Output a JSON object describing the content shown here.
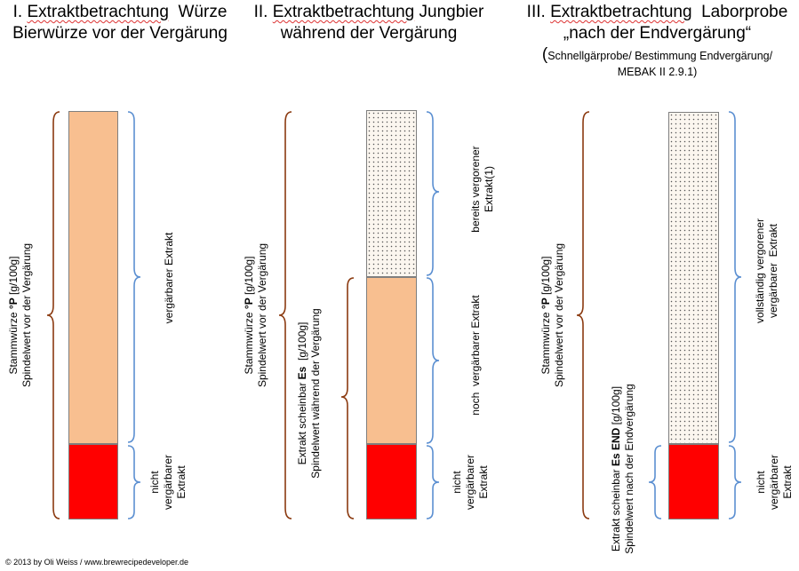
{
  "sections": [
    {
      "title_prefix": "I. ",
      "title_underlined": "Extraktbetrachtung",
      "title_rest": "  Würze",
      "subtitle": "Bierwürze vor der Vergärung",
      "left_label": {
        "line1_pre": "Stammwürze ",
        "line1_bold": "°P",
        "line1_post": " [g/100g]",
        "line2": "Spindelwert vor der Vergärung"
      },
      "upper_label": {
        "line1": "vergärbarer  Extrakt"
      },
      "lower_label": {
        "line1": "nicht",
        "line2": "vergärbarer",
        "line3": "Extrakt"
      }
    },
    {
      "title_prefix": "II. ",
      "title_underlined": "Extraktbetrachtung",
      "title_rest": " Jungbier",
      "subtitle": "während der Vergärung",
      "left_label": {
        "line1_pre": "Stammwürze ",
        "line1_bold": "°P",
        "line1_post": " [g/100g]",
        "line2": "Spindelwert vor der Vergärung"
      },
      "middle_label": {
        "line1_pre": "Extrakt scheinbar ",
        "line1_bold": "Es",
        "line1_post": "  [g/100g]",
        "line2": "Spindelwert während der Vergärung"
      },
      "upper_label": {
        "line1": "bereits vergorener",
        "line2": "Extrakt(1)"
      },
      "center_label": {
        "line1": "noch  vergärbarer Extrakt"
      },
      "lower_label": {
        "line1": "nicht",
        "line2": "vergärbarer",
        "line3": "Extrakt"
      }
    },
    {
      "title_prefix": "III. ",
      "title_underlined": "Extraktbetrachtung",
      "title_rest": "  Laborprobe",
      "subtitle": "„nach der Endvergärung“",
      "note_paren": "(",
      "note_line1": "Schnellgärprobe/ Bestimmung Endvergärung/",
      "note_line2": "MEBAK II 2.9.1)",
      "left_label": {
        "line1_pre": "Stammwürze ",
        "line1_bold": "°P",
        "line1_post": " [g/100g]",
        "line2": "Spindelwert vor der Vergärung"
      },
      "middle_label": {
        "line1_pre": "Extrakt scheinbar ",
        "line1_bold": "Es END",
        "line1_post": " [g/100g]",
        "line2": "Spindelwert nach der Endvergärung"
      },
      "upper_label": {
        "line1": "vollständig vergorener",
        "line2": "vergärbarer  Extrakt"
      },
      "lower_label": {
        "line1": "nicht",
        "line2": "vergärbarer",
        "line3": "Extrakt"
      }
    }
  ],
  "colors": {
    "fermentable": "#f8bf90",
    "unfermentable": "#ff0000",
    "fermented": "#fbf6ef",
    "brace_brown": "#8b3a10",
    "brace_blue": "#5b8fd1"
  },
  "copyright": "© 2013 by Oli Weiss / www.brewrecipedeveloper.de"
}
